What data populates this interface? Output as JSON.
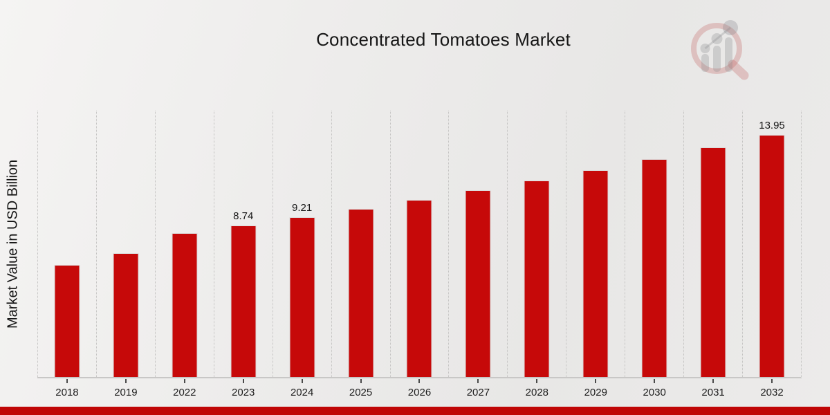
{
  "title": "Concentrated Tomatoes Market",
  "watermark": {
    "icon": "magnifier-bar-chart-logo"
  },
  "chart_data": {
    "type": "bar",
    "title": "Concentrated Tomatoes Market",
    "categories": [
      "2018",
      "2019",
      "2022",
      "2023",
      "2024",
      "2025",
      "2026",
      "2027",
      "2028",
      "2029",
      "2030",
      "2031",
      "2032"
    ],
    "values": [
      6.44,
      7.12,
      8.3,
      8.74,
      9.21,
      9.7,
      10.22,
      10.76,
      11.33,
      11.94,
      12.57,
      13.24,
      13.95
    ],
    "data_labels": [
      null,
      null,
      null,
      "8.74",
      "9.21",
      null,
      null,
      null,
      null,
      null,
      null,
      null,
      "13.95"
    ],
    "xlabel": "",
    "ylabel": "Market Value in USD Billion",
    "ylim": [
      0,
      15.35
    ],
    "grid": "vertical-dotted",
    "legend": "none",
    "bar_color": "#c60909",
    "label_color": "#161616"
  },
  "colors": {
    "accent_red": "#c60909",
    "footer_strip": "#c00606",
    "gridline": "#c2c1c0",
    "background_light": "#f5f4f3",
    "background_dark": "#e8e7e6"
  }
}
